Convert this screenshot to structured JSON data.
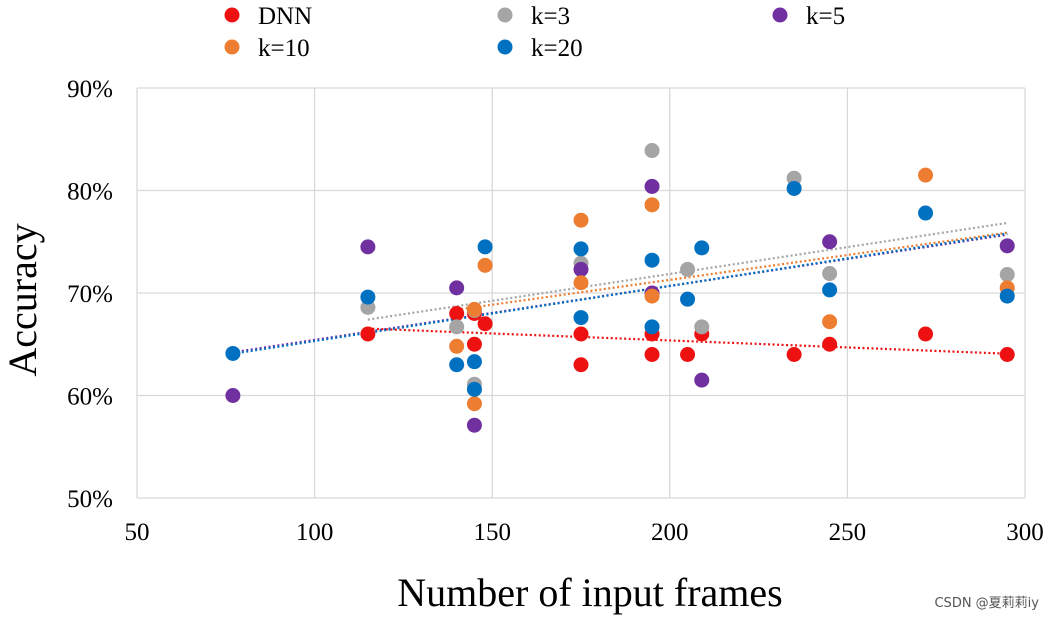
{
  "chart_data": {
    "type": "scatter",
    "title": "",
    "xlabel": "Number of input frames",
    "ylabel": "Accuracy",
    "xlim": [
      50,
      300
    ],
    "ylim": [
      50,
      90
    ],
    "x_ticks": [
      {
        "value": 50,
        "label": "50"
      },
      {
        "value": 100,
        "label": "100"
      },
      {
        "value": 150,
        "label": "150"
      },
      {
        "value": 200,
        "label": "200"
      },
      {
        "value": 250,
        "label": "250"
      },
      {
        "value": 300,
        "label": "300"
      }
    ],
    "y_ticks": [
      {
        "value": 50,
        "label": "50%"
      },
      {
        "value": 60,
        "label": "60%"
      },
      {
        "value": 70,
        "label": "70%"
      },
      {
        "value": 80,
        "label": "80%"
      },
      {
        "value": 90,
        "label": "90%"
      }
    ],
    "grid": true,
    "legend_position": "top",
    "trendlines": "linear, dotted",
    "series": [
      {
        "name": "DNN",
        "color": "#ee1111",
        "x": [
          115,
          140,
          145,
          145,
          148,
          175,
          175,
          195,
          195,
          205,
          209,
          235,
          245,
          272,
          295
        ],
        "y": [
          66,
          68,
          65,
          68,
          67,
          66,
          63,
          66,
          64,
          64,
          66,
          64,
          65,
          66,
          64
        ]
      },
      {
        "name": "k=3",
        "color": "#a5a5a5",
        "x": [
          115,
          140,
          145,
          145,
          175,
          195,
          205,
          209,
          235,
          245,
          295
        ],
        "y": [
          68.6,
          66.7,
          68.3,
          61.1,
          72.9,
          83.9,
          72.3,
          66.7,
          81.2,
          71.9,
          71.8
        ]
      },
      {
        "name": "k=5",
        "color": "#7030a0",
        "x": [
          77,
          115,
          140,
          145,
          175,
          195,
          195,
          209,
          245,
          295
        ],
        "y": [
          60,
          74.5,
          70.5,
          57.1,
          72.3,
          80.4,
          70,
          61.5,
          75,
          74.6
        ]
      },
      {
        "name": "k=10",
        "color": "#ed7d31",
        "x": [
          140,
          145,
          145,
          148,
          175,
          175,
          195,
          195,
          245,
          272,
          295
        ],
        "y": [
          64.8,
          68.4,
          59.2,
          72.7,
          77.1,
          71,
          78.6,
          69.7,
          67.2,
          81.5,
          70.5
        ]
      },
      {
        "name": "k=20",
        "color": "#0070c0",
        "x": [
          77,
          115,
          140,
          145,
          145,
          148,
          175,
          175,
          195,
          195,
          205,
          209,
          235,
          245,
          272,
          295
        ],
        "y": [
          64.1,
          69.6,
          63,
          63.3,
          60.6,
          74.5,
          74.3,
          67.6,
          73.2,
          66.7,
          69.4,
          74.4,
          80.2,
          70.3,
          77.8,
          69.7
        ]
      }
    ]
  },
  "watermark": "CSDN @夏莉莉iy"
}
